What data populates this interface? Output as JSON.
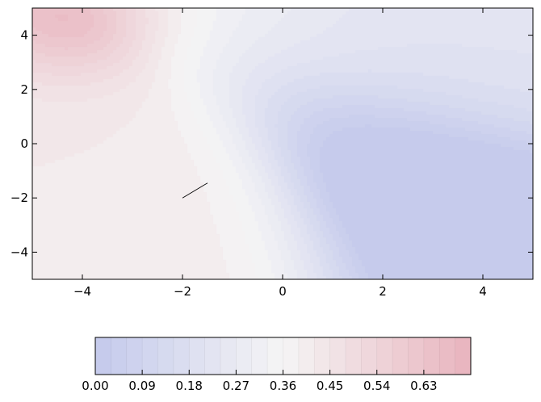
{
  "chart_data": {
    "type": "contourf",
    "title": "",
    "xlabel": "",
    "ylabel": "",
    "xlim": [
      -5,
      5
    ],
    "ylim": [
      -5,
      5
    ],
    "xticks": [
      -4,
      -2,
      0,
      2,
      4
    ],
    "yticks": [
      -4,
      -2,
      0,
      2,
      4
    ],
    "xtick_labels": [
      "−4",
      "−2",
      "0",
      "2",
      "4"
    ],
    "ytick_labels": [
      "−4",
      "−2",
      "0",
      "2",
      "4"
    ],
    "colormap": "coolwarm",
    "alpha": 0.3,
    "value_range": [
      0.0,
      0.72
    ],
    "levels": 24,
    "grid": false,
    "colorbar": {
      "orientation": "horizontal",
      "placement": "bottom",
      "ticks": [
        0.0,
        0.09,
        0.18,
        0.27,
        0.36,
        0.45,
        0.54,
        0.63
      ],
      "tick_labels": [
        "0.00",
        "0.09",
        "0.18",
        "0.27",
        "0.36",
        "0.45",
        "0.54",
        "0.63"
      ]
    },
    "features": [
      {
        "kind": "maximum",
        "x": -4.2,
        "y": 4.8,
        "value": 0.68
      },
      {
        "kind": "minimum_plateau",
        "x": 3.5,
        "y": -3.5,
        "value": 0.02
      },
      {
        "kind": "line_segment",
        "x": [
          -2.0,
          -1.5
        ],
        "y": [
          -2.0,
          -1.45
        ]
      }
    ]
  },
  "colors": {
    "low": "#3b4cc0",
    "mid": "#dddddd",
    "high": "#b40426"
  }
}
